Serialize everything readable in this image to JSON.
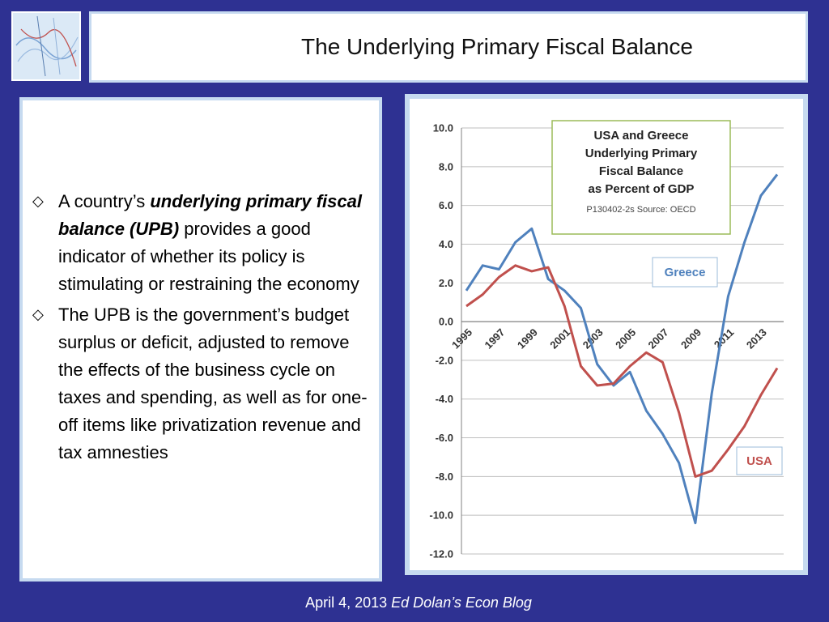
{
  "slide": {
    "title": "The Underlying Primary Fiscal Balance"
  },
  "bullets": [
    {
      "pre": "A country’s ",
      "emphasis": "underlying primary fiscal balance (UPB)",
      "post": " provides a good indicator of whether its policy is stimulating or restraining the economy"
    },
    {
      "pre": "The UPB is the government’s budget surplus or deficit, adjusted to remove the effects of the business cycle on taxes and spending, as well as for one-off items like privatization revenue and tax amnesties",
      "emphasis": "",
      "post": ""
    }
  ],
  "footer": {
    "date": "April 4, 2013",
    "blog": "Ed Dolan’s Econ Blog"
  },
  "chart_data": {
    "type": "line",
    "title_lines": [
      "USA and Greece",
      "Underlying Primary",
      "Fiscal Balance",
      "as Percent of GDP"
    ],
    "source": "P130402-2s Source: OECD",
    "x": [
      1995,
      1996,
      1997,
      1998,
      1999,
      2000,
      2001,
      2002,
      2003,
      2004,
      2005,
      2006,
      2007,
      2008,
      2009,
      2010,
      2011,
      2012,
      2013,
      2014
    ],
    "xtick_labels": [
      "1995",
      "1997",
      "1999",
      "2001",
      "2003",
      "2005",
      "2007",
      "2009",
      "2011",
      "2013"
    ],
    "ylim": [
      -12,
      10
    ],
    "ytick_labels": [
      "10.0",
      "8.0",
      "6.0",
      "4.0",
      "2.0",
      "0.0",
      "-2.0",
      "-4.0",
      "-6.0",
      "-8.0",
      "-10.0",
      "-12.0"
    ],
    "grid": true,
    "series": [
      {
        "name": "Greece",
        "color": "#4f81bd",
        "values": [
          1.6,
          2.9,
          2.7,
          4.1,
          4.8,
          2.2,
          1.6,
          0.7,
          -2.2,
          -3.3,
          -2.6,
          -4.6,
          -5.8,
          -7.3,
          -10.4,
          -3.7,
          1.3,
          4.1,
          6.5,
          7.6
        ]
      },
      {
        "name": "USA",
        "color": "#c0504d",
        "values": [
          0.8,
          1.4,
          2.3,
          2.9,
          2.6,
          2.8,
          0.8,
          -2.3,
          -3.3,
          -3.2,
          -2.3,
          -1.6,
          -2.1,
          -4.7,
          -8.0,
          -7.7,
          -6.6,
          -5.4,
          -3.8,
          -2.4
        ]
      }
    ]
  }
}
